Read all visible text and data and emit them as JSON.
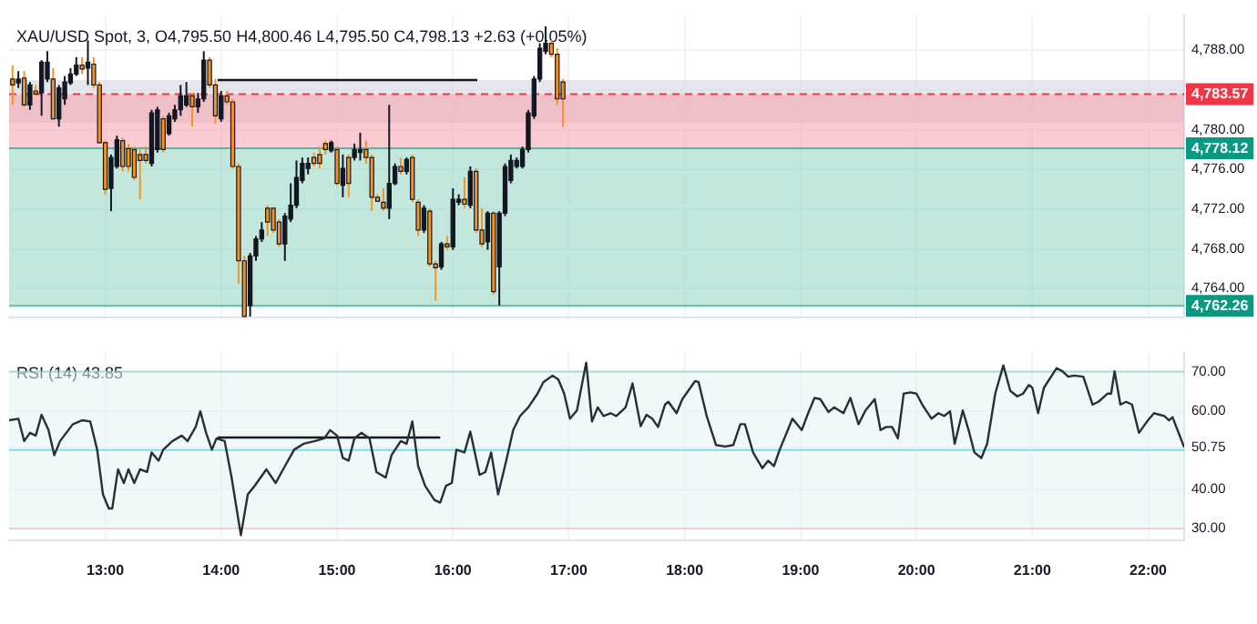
{
  "chart_data": [
    {
      "type": "candlestick",
      "title": "XAU/USD Spot, 3, O4,795.50 H4,800.46 L4,795.50 C4,798.13 +2.63 (+0.05%)",
      "xlim": [
        12.17,
        22.31
      ],
      "xticks": [
        {
          "value": 13,
          "label": null
        },
        {
          "value": 14,
          "label": null
        },
        {
          "value": 15,
          "label": null
        },
        {
          "value": 16,
          "label": null
        },
        {
          "value": 17,
          "label": null
        },
        {
          "value": 18,
          "label": null
        },
        {
          "value": 19,
          "label": null
        },
        {
          "value": 20,
          "label": null
        },
        {
          "value": 21,
          "label": null
        },
        {
          "value": 22,
          "label": null
        }
      ],
      "ylim": [
        4761.1,
        4791.5
      ],
      "yticks": [
        {
          "value": 4764,
          "label": "4,764.00"
        },
        {
          "value": 4768,
          "label": "4,768.00"
        },
        {
          "value": 4772,
          "label": "4,772.00"
        },
        {
          "value": 4776,
          "label": "4,776.00"
        },
        {
          "value": 4780,
          "label": "4,780.00"
        },
        {
          "value": 4784,
          "label": null
        },
        {
          "value": 4788,
          "label": "4,788.00"
        }
      ],
      "tick_labels": "y",
      "grid": true,
      "bands": [
        {
          "axis": "y",
          "from": 4780.7,
          "to": 4785.0,
          "color": "#d1d4dc"
        },
        {
          "axis": "y",
          "from": 4778.12,
          "to": 4783.57,
          "color": "#f7a1ab"
        },
        {
          "axis": "y",
          "from": 4762.26,
          "to": 4778.12,
          "color": "#8fd3c1"
        }
      ],
      "ref_lines": [
        {
          "axis": "y",
          "value": 4783.57,
          "label": "4,783.57",
          "color": "#f23645",
          "line_style": "dashed"
        },
        {
          "axis": "y",
          "value": 4778.12,
          "label": "4,778.12",
          "color": "#089981",
          "line_style": "solid"
        },
        {
          "axis": "y",
          "value": 4762.26,
          "label": "4,762.26",
          "color": "#089981",
          "line_style": "solid"
        }
      ],
      "series": [
        {
          "x": [
            12.2,
            12.25,
            12.3,
            12.35,
            12.4,
            12.45,
            12.5,
            12.55,
            12.6,
            12.65,
            12.7,
            12.75,
            12.8,
            12.85,
            12.9,
            12.95,
            13.0,
            13.05,
            13.1,
            13.15,
            13.2,
            13.25,
            13.3,
            13.35,
            13.4,
            13.45,
            13.5,
            13.55,
            13.6,
            13.65,
            13.7,
            13.75,
            13.8,
            13.85,
            13.9,
            13.95,
            14.0,
            14.05,
            14.1,
            14.15,
            14.2,
            14.25,
            14.3,
            14.35,
            14.4,
            14.45,
            14.5,
            14.55,
            14.6,
            14.65,
            14.7,
            14.75,
            14.8,
            14.85,
            14.9,
            14.95,
            15.0,
            15.05,
            15.1,
            15.15,
            15.2,
            15.25,
            15.3,
            15.35,
            15.4,
            15.45,
            15.5,
            15.55,
            15.6,
            15.65,
            15.7,
            15.75,
            15.8,
            15.85,
            15.9,
            15.95,
            16.0,
            16.05,
            16.1,
            16.15,
            16.2,
            16.25,
            16.3,
            16.35,
            16.4,
            16.45,
            16.5,
            16.55,
            16.6,
            16.65,
            16.7,
            16.75,
            16.8,
            16.85,
            16.9,
            16.95
          ],
          "ohlc": [
            [
              4785.1,
              4786.5,
              4782.5,
              4784.5
            ],
            [
              4784.7,
              4785.9,
              4784.2,
              4785.1
            ],
            [
              4785.2,
              4785.9,
              4782.3,
              4782.5
            ],
            [
              4782.5,
              4784.8,
              4782.0,
              4784.5
            ],
            [
              4783.9,
              4784.5,
              4783.4,
              4783.6
            ],
            [
              4783.7,
              4787.0,
              4781.4,
              4786.8
            ],
            [
              4785.1,
              4787.9,
              4784.8,
              4786.8
            ],
            [
              4785.1,
              4786.2,
              4781.1,
              4781.1
            ],
            [
              4781.1,
              4784.5,
              4780.3,
              4784.2
            ],
            [
              4783.1,
              4785.4,
              4782.5,
              4784.8
            ],
            [
              4784.7,
              4786.2,
              4784.5,
              4785.6
            ],
            [
              4785.6,
              4787.3,
              4785.4,
              4786.5
            ],
            [
              4786.5,
              4787.3,
              4785.6,
              4786.1
            ],
            [
              4786.2,
              4789.0,
              4784.5,
              4786.8
            ],
            [
              4786.6,
              4787.3,
              4784.2,
              4784.5
            ],
            [
              4784.5,
              4784.8,
              4778.6,
              4778.7
            ],
            [
              4778.7,
              4778.9,
              4773.5,
              4774.0
            ],
            [
              4774.1,
              4777.5,
              4771.8,
              4777.2
            ],
            [
              4776.3,
              4779.4,
              4776.1,
              4779.0
            ],
            [
              4778.9,
              4779.2,
              4775.8,
              4776.3
            ],
            [
              4778.1,
              4778.6,
              4775.8,
              4776.3
            ],
            [
              4778.0,
              4778.3,
              4774.9,
              4775.2
            ],
            [
              4777.5,
              4778.0,
              4773.0,
              4776.9
            ],
            [
              4777.5,
              4778.3,
              4776.6,
              4776.9
            ],
            [
              4776.6,
              4782.0,
              4776.3,
              4781.7
            ],
            [
              4778.0,
              4782.3,
              4777.7,
              4782.0
            ],
            [
              4781.1,
              4781.4,
              4777.7,
              4778.0
            ],
            [
              4779.6,
              4781.7,
              4779.4,
              4781.4
            ],
            [
              4781.1,
              4782.5,
              4780.8,
              4782.0
            ],
            [
              4782.0,
              4784.5,
              4781.4,
              4783.4
            ],
            [
              4782.5,
              4784.8,
              4782.3,
              4783.4
            ],
            [
              4783.4,
              4783.7,
              4780.3,
              4782.3
            ],
            [
              4782.3,
              4783.7,
              4781.7,
              4783.1
            ],
            [
              4783.1,
              4787.9,
              4782.8,
              4787.0
            ],
            [
              4787.0,
              4787.3,
              4784.2,
              4784.5
            ],
            [
              4784.5,
              4785.1,
              4780.6,
              4781.4
            ],
            [
              4781.1,
              4783.9,
              4780.8,
              4783.4
            ],
            [
              4783.4,
              4783.9,
              4782.5,
              4782.8
            ],
            [
              4782.8,
              4783.1,
              4776.1,
              4776.3
            ],
            [
              4776.3,
              4776.6,
              4764.5,
              4766.8
            ],
            [
              4766.8,
              4767.3,
              4761.2,
              4761.2
            ],
            [
              4762.3,
              4767.6,
              4761.2,
              4767.3
            ],
            [
              4767.3,
              4769.3,
              4766.8,
              4769.0
            ],
            [
              4769.0,
              4770.7,
              4768.7,
              4769.9
            ],
            [
              4772.1,
              4772.4,
              4769.3,
              4770.7
            ],
            [
              4772.1,
              4772.1,
              4769.6,
              4769.9
            ],
            [
              4770.7,
              4771.0,
              4768.2,
              4768.5
            ],
            [
              4768.5,
              4771.6,
              4766.8,
              4771.3
            ],
            [
              4771.0,
              4774.6,
              4770.7,
              4772.4
            ],
            [
              4772.4,
              4776.9,
              4772.1,
              4775.2
            ],
            [
              4774.9,
              4777.2,
              4774.6,
              4776.6
            ],
            [
              4776.1,
              4777.2,
              4775.5,
              4776.6
            ],
            [
              4777.2,
              4777.7,
              4776.3,
              4776.6
            ],
            [
              4777.5,
              4778.3,
              4776.1,
              4776.6
            ],
            [
              4778.6,
              4778.9,
              4777.5,
              4778.0
            ],
            [
              4777.9,
              4778.9,
              4777.7,
              4778.7
            ],
            [
              4778.0,
              4778.3,
              4774.4,
              4774.6
            ],
            [
              4774.4,
              4777.5,
              4773.2,
              4776.1
            ],
            [
              4777.2,
              4777.5,
              4773.2,
              4774.6
            ],
            [
              4777.2,
              4778.6,
              4776.9,
              4778.0
            ],
            [
              4777.7,
              4779.7,
              4776.9,
              4778.0
            ],
            [
              4778.0,
              4778.9,
              4776.6,
              4777.2
            ],
            [
              4777.2,
              4777.5,
              4771.8,
              4773.2
            ],
            [
              4773.2,
              4773.5,
              4772.7,
              4772.8
            ],
            [
              4772.7,
              4774.1,
              4771.8,
              4772.1
            ],
            [
              4772.1,
              4782.5,
              4771.0,
              4774.6
            ],
            [
              4774.6,
              4776.6,
              4774.4,
              4776.3
            ],
            [
              4776.3,
              4777.2,
              4775.5,
              4775.8
            ],
            [
              4775.8,
              4777.2,
              4775.5,
              4777.0
            ],
            [
              4777.2,
              4777.5,
              4772.7,
              4773.0
            ],
            [
              4772.7,
              4773.0,
              4769.3,
              4769.9
            ],
            [
              4769.9,
              4772.4,
              4769.6,
              4772.1
            ],
            [
              4771.8,
              4772.1,
              4766.2,
              4766.5
            ],
            [
              4766.5,
              4766.8,
              4762.8,
              4766.1
            ],
            [
              4766.2,
              4768.7,
              4765.9,
              4768.5
            ],
            [
              4768.5,
              4769.3,
              4767.9,
              4768.2
            ],
            [
              4768.2,
              4774.1,
              4767.9,
              4773.0
            ],
            [
              4772.7,
              4773.5,
              4772.4,
              4773.0
            ],
            [
              4773.0,
              4775.2,
              4772.1,
              4772.5
            ],
            [
              4772.4,
              4776.3,
              4772.1,
              4775.8
            ],
            [
              4775.8,
              4776.1,
              4769.6,
              4769.9
            ],
            [
              4769.9,
              4772.1,
              4768.2,
              4768.5
            ],
            [
              4768.7,
              4771.8,
              4767.9,
              4771.6
            ],
            [
              4771.6,
              4771.8,
              4763.4,
              4763.7
            ],
            [
              4766.2,
              4771.8,
              4762.3,
              4771.6
            ],
            [
              4771.6,
              4776.6,
              4771.3,
              4776.3
            ],
            [
              4774.9,
              4777.5,
              4774.6,
              4776.9
            ],
            [
              4776.3,
              4777.2,
              4776.1,
              4776.9
            ],
            [
              4776.3,
              4778.3,
              4776.1,
              4778.0
            ],
            [
              4778.0,
              4782.0,
              4777.7,
              4781.7
            ],
            [
              4781.4,
              4785.4,
              4781.1,
              4785.1
            ],
            [
              4785.1,
              4788.7,
              4784.8,
              4788.2
            ],
            [
              4787.9,
              4790.4,
              4787.6,
              4788.7
            ],
            [
              4788.7,
              4789.0,
              4787.3,
              4787.6
            ],
            [
              4787.6,
              4788.2,
              4782.5,
              4783.1
            ],
            [
              4784.8,
              4785.1,
              4780.3,
              4783.1
            ]
          ],
          "colors": [
            "#f7941d",
            "#131722",
            "#f7941d",
            "#131722",
            "#f7941d",
            "#131722",
            "#131722",
            "#f7941d",
            "#131722",
            "#131722",
            "#131722",
            "#131722",
            "#f7941d",
            "#131722",
            "#f7941d",
            "#f7941d",
            "#f7941d",
            "#131722",
            "#131722",
            "#f7941d",
            "#f7941d",
            "#f7941d",
            "#f7941d",
            "#f7941d",
            "#131722",
            "#131722",
            "#f7941d",
            "#131722",
            "#131722",
            "#131722",
            "#131722",
            "#f7941d",
            "#131722",
            "#131722",
            "#f7941d",
            "#f7941d",
            "#131722",
            "#f7941d",
            "#f7941d",
            "#f7941d",
            "#f7941d",
            "#131722",
            "#131722",
            "#131722",
            "#f7941d",
            "#f7941d",
            "#f7941d",
            "#131722",
            "#131722",
            "#131722",
            "#131722",
            "#131722",
            "#f7941d",
            "#f7941d",
            "#f7941d",
            "#131722",
            "#f7941d",
            "#131722",
            "#f7941d",
            "#131722",
            "#131722",
            "#f7941d",
            "#f7941d",
            "#f7941d",
            "#f7941d",
            "#131722",
            "#131722",
            "#f7941d",
            "#131722",
            "#f7941d",
            "#f7941d",
            "#131722",
            "#f7941d",
            "#f7941d",
            "#131722",
            "#f7941d",
            "#131722",
            "#131722",
            "#f7941d",
            "#131722",
            "#f7941d",
            "#f7941d",
            "#131722",
            "#f7941d",
            "#131722",
            "#131722",
            "#131722",
            "#131722",
            "#131722",
            "#131722",
            "#131722",
            "#131722",
            "#131722",
            "#f7941d",
            "#f7941d",
            "#f7941d"
          ]
        },
        {
          "type": "line",
          "color": "#131722",
          "x": [
            13.97,
            16.21
          ],
          "values": [
            4785.0,
            4785.0
          ]
        }
      ]
    },
    {
      "type": "line",
      "title": "RSI (14) 43.85",
      "xlim": [
        12.17,
        22.31
      ],
      "xticks": [
        {
          "value": 13,
          "label": "13:00"
        },
        {
          "value": 14,
          "label": "14:00"
        },
        {
          "value": 15,
          "label": "15:00"
        },
        {
          "value": 16,
          "label": "16:00"
        },
        {
          "value": 17,
          "label": "17:00"
        },
        {
          "value": 18,
          "label": "18:00"
        },
        {
          "value": 19,
          "label": "19:00"
        },
        {
          "value": 20,
          "label": "20:00"
        },
        {
          "value": 21,
          "label": "21:00"
        },
        {
          "value": 22,
          "label": "22:00"
        }
      ],
      "ylim": [
        27,
        75
      ],
      "yticks": [
        {
          "value": 30,
          "label": "30.00"
        },
        {
          "value": 40,
          "label": "40.00"
        },
        {
          "value": 50,
          "label": null
        },
        {
          "value": 50.75,
          "label": "50.75"
        },
        {
          "value": 60,
          "label": "60.00"
        },
        {
          "value": 70,
          "label": "70.00"
        }
      ],
      "grid": true,
      "bands": [
        {
          "axis": "y",
          "from": 30,
          "to": 70,
          "color": "#e3f4f1"
        }
      ],
      "ref_lines": [
        {
          "axis": "y",
          "value": 70,
          "color": "#7ec8b8",
          "line_style": "solid"
        },
        {
          "axis": "y",
          "value": 50,
          "color": "#43c6dc",
          "line_style": "solid"
        },
        {
          "axis": "y",
          "value": 30,
          "color": "#f5b5c8",
          "line_style": "solid"
        }
      ],
      "series": [
        {
          "color": "#2a2e39",
          "x": [
            12.17,
            12.25,
            12.3,
            12.35,
            12.4,
            12.45,
            12.51,
            12.56,
            12.61,
            12.72,
            12.8,
            12.87,
            12.93,
            12.98,
            13.03,
            13.06,
            13.11,
            13.16,
            13.2,
            13.25,
            13.3,
            13.36,
            13.4,
            13.46,
            13.5,
            13.58,
            13.66,
            13.71,
            13.78,
            13.82,
            13.87,
            13.92,
            13.96,
            14.03,
            14.09,
            14.17,
            14.23,
            14.29,
            14.34,
            14.39,
            14.47,
            14.55,
            14.63,
            14.71,
            14.81,
            14.89,
            14.94,
            15.0,
            15.05,
            15.1,
            15.15,
            15.21,
            15.28,
            15.34,
            15.42,
            15.47,
            15.55,
            15.6,
            15.65,
            15.7,
            15.76,
            15.84,
            15.89,
            15.94,
            15.99,
            16.03,
            16.1,
            16.15,
            16.23,
            16.28,
            16.33,
            16.39,
            16.46,
            16.52,
            16.58,
            16.65,
            16.73,
            16.78,
            16.86,
            16.91,
            16.96,
            17.01,
            17.07,
            17.15,
            17.2,
            17.25,
            17.3,
            17.36,
            17.41,
            17.49,
            17.55,
            17.62,
            17.67,
            17.72,
            17.77,
            17.83,
            17.86,
            17.93,
            17.98,
            18.09,
            18.12,
            18.19,
            18.27,
            18.35,
            18.42,
            18.48,
            18.52,
            18.59,
            18.67,
            18.72,
            18.77,
            18.82,
            18.93,
            19.01,
            19.06,
            19.12,
            19.17,
            19.24,
            19.29,
            19.37,
            19.43,
            19.5,
            19.56,
            19.64,
            19.69,
            19.74,
            19.79,
            19.84,
            19.89,
            19.95,
            20.0,
            20.05,
            20.13,
            20.19,
            20.24,
            20.29,
            20.33,
            20.4,
            20.45,
            20.5,
            20.56,
            20.61,
            20.68,
            20.75,
            20.81,
            20.87,
            20.92,
            20.97,
            21.0,
            21.05,
            21.1,
            21.21,
            21.26,
            21.31,
            21.36,
            21.44,
            21.52,
            21.57,
            21.65,
            21.68,
            21.71,
            21.76,
            21.81,
            21.86,
            21.92,
            21.99,
            22.05,
            22.1,
            22.14,
            22.18,
            22.21,
            22.31
          ],
          "values": [
            57.6,
            58.0,
            52.3,
            54.4,
            53.7,
            59.0,
            55.1,
            48.7,
            52.3,
            56.6,
            57.6,
            57.3,
            50.1,
            38.7,
            35.1,
            35.1,
            45.1,
            41.6,
            45.1,
            41.6,
            45.1,
            44.4,
            49.4,
            47.3,
            50.1,
            52.3,
            53.7,
            52.3,
            55.9,
            59.9,
            54.4,
            50.1,
            53.0,
            52.3,
            43.0,
            28.3,
            38.7,
            40.9,
            43.0,
            45.1,
            41.6,
            45.9,
            50.1,
            51.6,
            52.3,
            53.0,
            55.1,
            53.7,
            48.0,
            47.3,
            53.0,
            54.4,
            53.0,
            44.4,
            43.0,
            48.7,
            52.3,
            51.6,
            57.3,
            45.9,
            40.9,
            37.3,
            36.6,
            40.9,
            41.6,
            50.1,
            49.4,
            54.7,
            43.7,
            44.4,
            49.4,
            38.7,
            47.3,
            55.1,
            58.7,
            60.9,
            64.4,
            67.3,
            69.0,
            68.0,
            64.4,
            58.0,
            60.1,
            72.3,
            57.3,
            60.9,
            58.7,
            59.4,
            58.7,
            60.9,
            67.0,
            56.1,
            59.0,
            58.0,
            55.9,
            61.6,
            62.3,
            59.4,
            63.0,
            67.6,
            67.3,
            58.7,
            51.3,
            50.9,
            51.3,
            56.6,
            56.6,
            49.4,
            45.4,
            47.3,
            45.9,
            50.1,
            58.0,
            55.1,
            59.0,
            63.3,
            63.0,
            59.7,
            60.9,
            59.4,
            63.3,
            56.6,
            60.1,
            63.0,
            55.1,
            55.9,
            55.9,
            53.0,
            64.4,
            64.7,
            64.4,
            61.6,
            58.0,
            59.4,
            58.7,
            59.9,
            51.6,
            60.1,
            55.1,
            49.4,
            48.0,
            51.6,
            64.4,
            71.6,
            65.1,
            63.7,
            64.4,
            66.6,
            65.9,
            59.4,
            65.9,
            70.9,
            70.1,
            68.7,
            69.0,
            68.7,
            61.6,
            62.3,
            64.4,
            64.4,
            70.1,
            61.6,
            62.3,
            61.6,
            54.4,
            57.3,
            59.4,
            59.0,
            58.7,
            57.6,
            58.4,
            50.75
          ]
        },
        {
          "color": "#131722",
          "x": [
            13.97,
            15.89
          ],
          "values": [
            53.2,
            53.2
          ]
        }
      ]
    }
  ]
}
